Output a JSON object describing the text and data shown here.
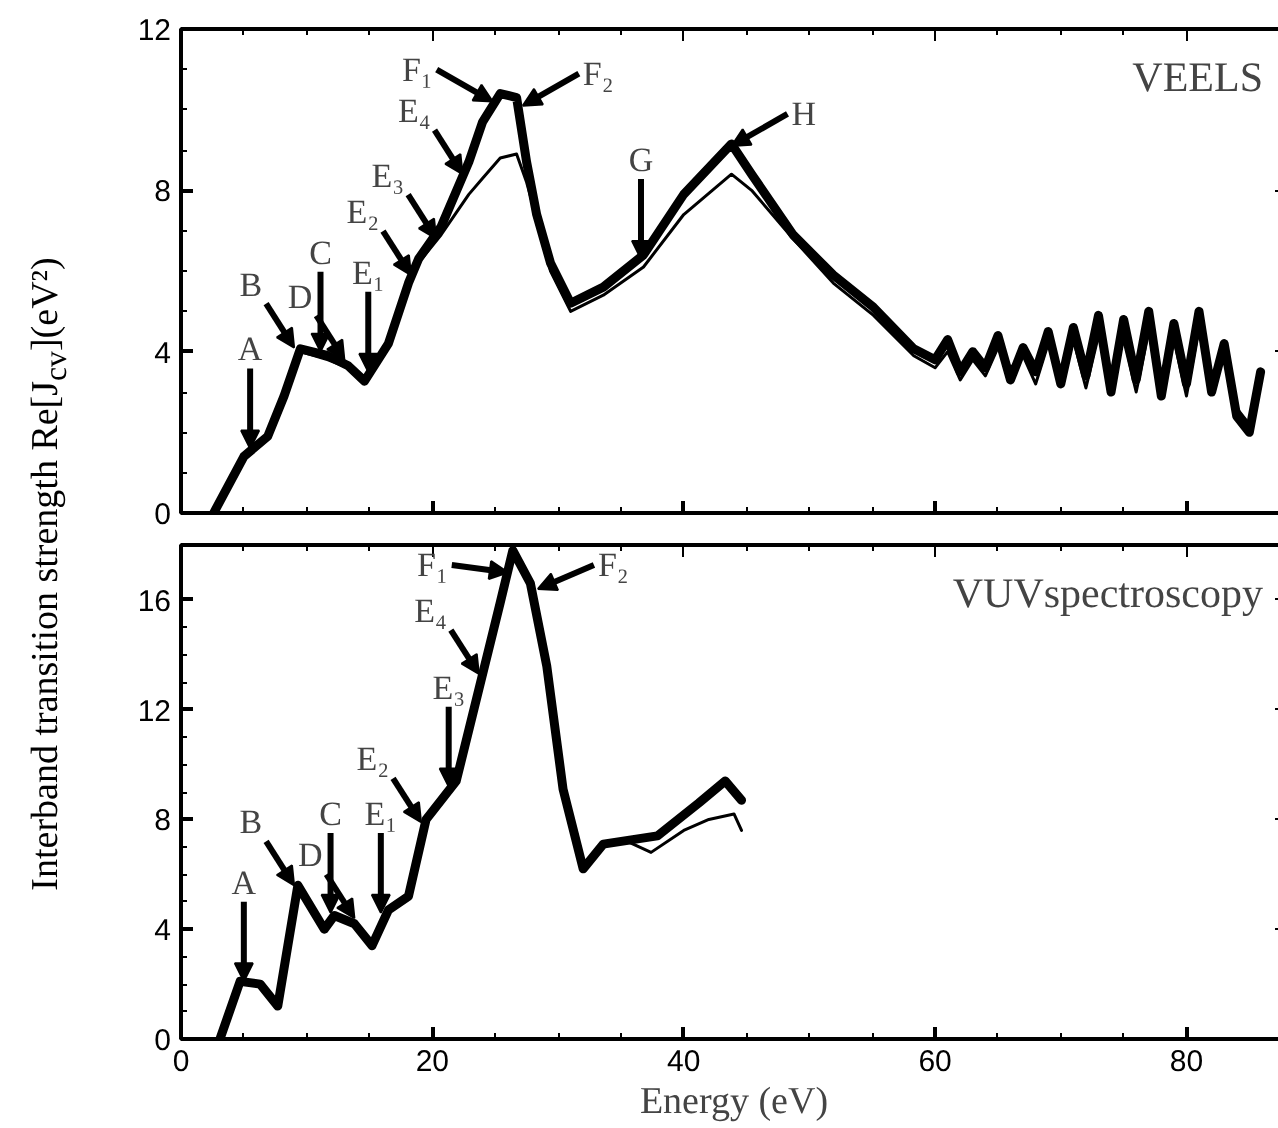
{
  "chart_data": [
    {
      "type": "line",
      "ylabel": "Interband transition strength Re[J$_{cv}$](eV²)",
      "xlim": [
        0,
        88
      ],
      "ylim": [
        0,
        12
      ],
      "xticks": [
        0,
        20,
        40,
        60,
        80
      ],
      "yticks": [
        0,
        4,
        8,
        12
      ],
      "tick_labels": "y",
      "annotations": [
        "VEELS",
        {
          "text": "A",
          "x": 5.5,
          "y": 1.6
        },
        {
          "text": "B",
          "x": 9.0,
          "y": 4.1
        },
        {
          "text": "C",
          "x": 11.1,
          "y": 4.0
        },
        {
          "text": "D",
          "x": 13.0,
          "y": 3.8
        },
        {
          "text": "E₁",
          "x": 14.9,
          "y": 3.5
        },
        {
          "text": "E₂",
          "x": 18.3,
          "y": 5.9
        },
        {
          "text": "E₃",
          "x": 20.3,
          "y": 6.8
        },
        {
          "text": "E₄",
          "x": 22.4,
          "y": 8.4
        },
        {
          "text": "F₁",
          "x": 24.8,
          "y": 10.2
        },
        {
          "text": "F₂",
          "x": 27.2,
          "y": 10.1
        },
        {
          "text": "G",
          "x": 36.6,
          "y": 6.3
        },
        {
          "text": "H",
          "x": 43.8,
          "y": 9.1
        }
      ],
      "series": [
        {
          "color": "#000000",
          "x": [
            2.6,
            5.0,
            6.9,
            8.2,
            9.5,
            11.7,
            13.3,
            14.6,
            16.5,
            18.1,
            18.9,
            20.7,
            22.9,
            24.0,
            25.4,
            26.7,
            27.5,
            28.3,
            29.4,
            31.0,
            33.6,
            36.8,
            40.0,
            43.8,
            45.4,
            48.7,
            51.9,
            55.1,
            58.3,
            60,
            61,
            62,
            63,
            64,
            65,
            66,
            67,
            68,
            69,
            70,
            71,
            72,
            73,
            74,
            75,
            76,
            77,
            78,
            79,
            80,
            81,
            82,
            83,
            84,
            85,
            85.9
          ],
          "values": [
            0,
            1.4,
            1.9,
            2.9,
            4.07,
            3.9,
            3.65,
            3.27,
            4.2,
            5.7,
            6.3,
            7.1,
            8.7,
            9.7,
            10.4,
            10.3,
            8.7,
            7.4,
            6.2,
            5.2,
            5.6,
            6.4,
            7.9,
            9.15,
            8.4,
            6.9,
            5.9,
            5.1,
            4.07,
            3.8,
            4.3,
            3.5,
            4.0,
            3.6,
            4.4,
            3.3,
            4.1,
            3.5,
            4.5,
            3.2,
            4.6,
            3.4,
            4.9,
            3.0,
            4.8,
            3.3,
            5.0,
            2.9,
            4.7,
            3.2,
            5.0,
            3.0,
            4.2,
            2.4,
            2.0,
            3.5
          ]
        },
        {
          "color": "#000000",
          "x": [
            2.6,
            5.0,
            6.9,
            8.2,
            9.5,
            11.7,
            13.3,
            14.6,
            16.5,
            18.1,
            18.9,
            20.7,
            22.9,
            24.0,
            25.4,
            26.7,
            27.5,
            28.3,
            29.4,
            31.0,
            33.6,
            36.8,
            40.0,
            43.8,
            45.4,
            48.7,
            51.9,
            55.1,
            58.3,
            60,
            61,
            62,
            63,
            64,
            65,
            66,
            67,
            68,
            69,
            70,
            71,
            72,
            73,
            74,
            75,
            76,
            77,
            78,
            79,
            80,
            81,
            82,
            83,
            84,
            85,
            85.9
          ],
          "values": [
            0,
            1.4,
            1.9,
            2.9,
            4.0,
            3.8,
            3.6,
            3.2,
            4.1,
            5.6,
            6.2,
            6.9,
            7.9,
            8.3,
            8.8,
            8.9,
            8.2,
            7.3,
            6.0,
            5.0,
            5.4,
            6.1,
            7.4,
            8.4,
            8.0,
            6.8,
            5.7,
            4.9,
            3.9,
            3.6,
            4.0,
            3.3,
            3.8,
            3.4,
            4.1,
            3.6,
            3.9,
            3.2,
            4.2,
            3.5,
            4.3,
            3.1,
            4.4,
            3.3,
            4.3,
            3.0,
            4.5,
            3.2,
            4.3,
            2.9,
            4.6,
            3.1,
            3.9,
            2.6,
            2.2,
            3.3
          ]
        }
      ]
    },
    {
      "type": "line",
      "xlabel": "Energy (eV)",
      "xlim": [
        0,
        88
      ],
      "ylim": [
        0,
        18
      ],
      "xticks": [
        0,
        20,
        40,
        60,
        80
      ],
      "yticks": [
        0,
        4,
        8,
        12,
        16
      ],
      "annotations": [
        "VUVspectroscopy",
        {
          "text": "A",
          "x": 5.0,
          "y": 2.1
        },
        {
          "text": "B",
          "x": 9.0,
          "y": 5.6
        },
        {
          "text": "C",
          "x": 11.9,
          "y": 4.6
        },
        {
          "text": "D",
          "x": 13.8,
          "y": 4.4
        },
        {
          "text": "E₁",
          "x": 15.9,
          "y": 4.6
        },
        {
          "text": "E₂",
          "x": 19.1,
          "y": 7.9
        },
        {
          "text": "E₃",
          "x": 21.3,
          "y": 9.2
        },
        {
          "text": "E₄",
          "x": 23.7,
          "y": 13.3
        },
        {
          "text": "F₁",
          "x": 26.0,
          "y": 17.0
        },
        {
          "text": "F₂",
          "x": 28.4,
          "y": 16.4
        }
      ],
      "series": [
        {
          "color": "#000000",
          "x": [
            3.1,
            4.7,
            6.3,
            7.7,
            9.3,
            11.4,
            12.2,
            13.8,
            15.2,
            16.5,
            18.1,
            19.5,
            21.9,
            24.0,
            25.4,
            26.4,
            27.8,
            29.1,
            30.4,
            32.0,
            33.6,
            37.9,
            41.2,
            43.3,
            44.6
          ],
          "values": [
            0,
            2.1,
            2.0,
            1.2,
            5.6,
            4.0,
            4.5,
            4.2,
            3.4,
            4.7,
            5.2,
            8.0,
            9.4,
            13.3,
            15.9,
            17.8,
            16.6,
            13.6,
            9.1,
            6.2,
            7.1,
            7.4,
            8.6,
            9.4,
            8.7
          ]
        },
        {
          "color": "#000000",
          "x": [
            3.1,
            4.7,
            6.3,
            7.7,
            9.3,
            11.4,
            12.2,
            13.8,
            15.2,
            16.5,
            18.1,
            19.5,
            21.9,
            24.0,
            25.4,
            26.4,
            27.8,
            29.1,
            30.4,
            32.0,
            33.6,
            35.5,
            37.4,
            40.0,
            42.0,
            44.0,
            44.6
          ],
          "values": [
            0,
            2.1,
            2.0,
            1.2,
            5.6,
            4.0,
            4.5,
            4.2,
            3.4,
            4.7,
            5.2,
            8.0,
            9.4,
            13.3,
            15.9,
            17.8,
            16.6,
            13.6,
            9.1,
            6.2,
            7.1,
            7.2,
            6.8,
            7.6,
            8.0,
            8.2,
            7.6
          ]
        }
      ]
    }
  ]
}
